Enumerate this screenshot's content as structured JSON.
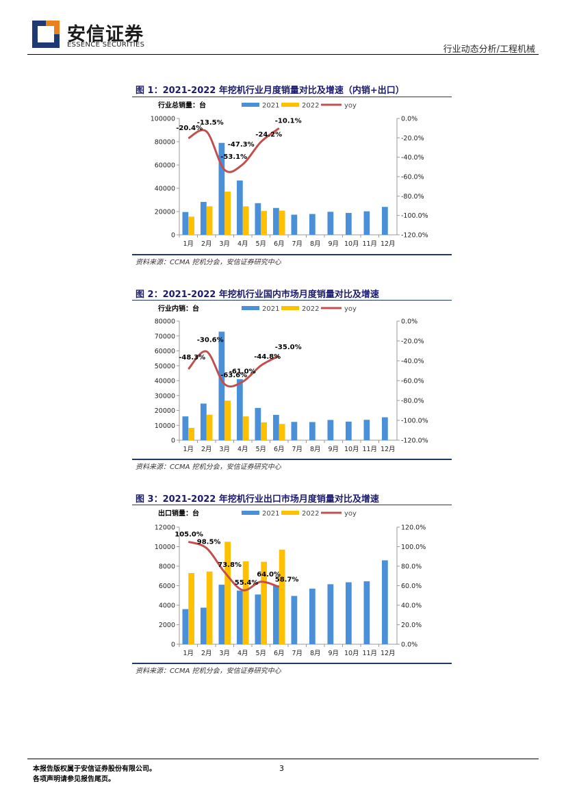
{
  "header": {
    "brand_cn": "安信证券",
    "brand_en": "ESSENCE SECURITIES",
    "section": "行业动态分析/工程机械"
  },
  "colors": {
    "accent": "#1f3864",
    "bar2021": "#4a90d9",
    "bar2022": "#ffc000",
    "yoy": "#c0504d"
  },
  "charts": [
    {
      "title": "图 1：2021-2022 年挖机行业月度销量对比及增速（内销+出口）",
      "source": "资料来源：CCMA 挖机分会，安信证券研究中心",
      "chart_data": {
        "type": "bar",
        "ylabel": "行业总销量：台",
        "categories": [
          "1月",
          "2月",
          "3月",
          "4月",
          "5月",
          "6月",
          "7月",
          "8月",
          "9月",
          "10月",
          "11月",
          "12月"
        ],
        "series": [
          {
            "name": "2021",
            "values": [
              19600,
              28300,
              79000,
              46700,
              27200,
              23100,
              17300,
              17900,
              19800,
              18800,
              20200,
              24000
            ]
          },
          {
            "name": "2022",
            "values": [
              15600,
              24500,
              37100,
              24500,
              20500,
              20800
            ]
          },
          {
            "name": "yoy",
            "values": [
              -20.4,
              -13.5,
              -53.1,
              -47.3,
              -24.2,
              -10.1
            ]
          }
        ],
        "ylim": [
          0,
          100000
        ],
        "yticks": [
          "100000",
          "80000",
          "60000",
          "40000",
          "20000",
          "0"
        ],
        "y2lim": [
          -120,
          0
        ],
        "y2ticks": [
          "0.0%",
          "-20.0%",
          "-40.0%",
          "-60.0%",
          "-80.0%",
          "-100.0%",
          "-120.0%"
        ],
        "labels": [
          "-20.4%",
          "-13.5%",
          "-53.1%",
          "-47.3%",
          "-24.2%",
          "-10.1%"
        ]
      }
    },
    {
      "title": "图 2：2021-2022 年挖机行业国内市场月度销量对比及增速",
      "source": "资料来源：CCMA 挖机分会，安信证券研究中心",
      "chart_data": {
        "type": "bar",
        "ylabel": "行业内销：台",
        "categories": [
          "1月",
          "2月",
          "3月",
          "4月",
          "5月",
          "6月",
          "7月",
          "8月",
          "9月",
          "10月",
          "11月",
          "12月"
        ],
        "series": [
          {
            "name": "2021",
            "values": [
              16000,
              24600,
              72900,
              41000,
              21700,
              17000,
              12300,
              12200,
              13600,
              12500,
              13700,
              15400
            ]
          },
          {
            "name": "2022",
            "values": [
              8300,
              17100,
              26600,
              16000,
              12000,
              10900
            ]
          },
          {
            "name": "yoy",
            "values": [
              -48.3,
              -30.6,
              -63.6,
              -61.0,
              -44.8,
              -35.0
            ]
          }
        ],
        "ylim": [
          0,
          80000
        ],
        "yticks": [
          "80000",
          "70000",
          "60000",
          "50000",
          "40000",
          "30000",
          "20000",
          "10000",
          "0"
        ],
        "y2lim": [
          -120,
          0
        ],
        "y2ticks": [
          "0.0%",
          "-20.0%",
          "-40.0%",
          "-60.0%",
          "-80.0%",
          "-100.0%",
          "-120.0%"
        ],
        "labels": [
          "-48.3%",
          "-30.6%",
          "-63.6%",
          "-61.0%",
          "-44.8%",
          "-35.0%"
        ]
      }
    },
    {
      "title": "图 3：2021-2022 年挖机行业出口市场月度销量对比及增速",
      "source": "资料来源：CCMA 挖机分会，安信证券研究中心",
      "chart_data": {
        "type": "bar",
        "ylabel": "出口销量：台",
        "categories": [
          "1月",
          "2月",
          "3月",
          "4月",
          "5月",
          "6月",
          "7月",
          "8月",
          "9月",
          "10月",
          "11月",
          "12月"
        ],
        "series": [
          {
            "name": "2021",
            "values": [
              3600,
              3750,
              6100,
              5500,
              5100,
              6050,
              4950,
              5700,
              6150,
              6350,
              6450,
              8600
            ]
          },
          {
            "name": "2022",
            "values": [
              7300,
              7450,
              10500,
              8500,
              8450,
              9700
            ]
          },
          {
            "name": "yoy",
            "values": [
              105.0,
              98.5,
              73.8,
              55.4,
              64.0,
              58.7
            ]
          }
        ],
        "ylim": [
          0,
          12000
        ],
        "yticks": [
          "12000",
          "10000",
          "8000",
          "6000",
          "4000",
          "2000",
          "0"
        ],
        "y2lim": [
          0,
          120
        ],
        "y2ticks": [
          "120.0%",
          "100.0%",
          "80.0%",
          "60.0%",
          "40.0%",
          "20.0%",
          "0.0%"
        ],
        "labels": [
          "105.0%",
          "98.5%",
          "73.8%",
          "55.4%",
          "64.0%",
          "58.7%"
        ]
      }
    }
  ],
  "footer": {
    "line1": "本报告版权属于安信证券股份有限公司。",
    "line2": "各项声明请参见报告尾页。",
    "page": "3"
  }
}
